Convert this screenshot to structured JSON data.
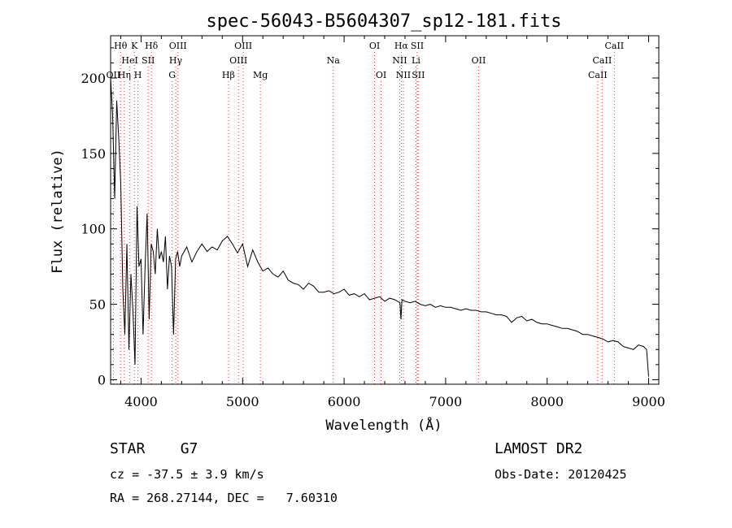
{
  "chart_data": {
    "type": "line",
    "title": "spec-56043-B5604307_sp12-181.fits",
    "xlabel": "Wavelength (Å)",
    "ylabel": "Flux (relative)",
    "xlim": [
      3700,
      9100
    ],
    "ylim": [
      -3,
      228
    ],
    "x_ticks": [
      4000,
      5000,
      6000,
      7000,
      8000,
      9000
    ],
    "y_ticks": [
      0,
      50,
      100,
      150,
      200
    ],
    "series": [
      {
        "x": [
          3700,
          3720,
          3740,
          3760,
          3780,
          3800,
          3820,
          3840,
          3860,
          3880,
          3900,
          3920,
          3940,
          3960,
          3980,
          4000,
          4020,
          4040,
          4060,
          4080,
          4100,
          4120,
          4140,
          4160,
          4180,
          4200,
          4220,
          4240,
          4260,
          4280,
          4300,
          4320,
          4340,
          4360,
          4380,
          4400,
          4450,
          4500,
          4550,
          4600,
          4650,
          4700,
          4750,
          4800,
          4850,
          4900,
          4950,
          5000,
          5050,
          5100,
          5150,
          5200,
          5250,
          5300,
          5350,
          5400,
          5450,
          5500,
          5550,
          5600,
          5650,
          5700,
          5750,
          5800,
          5850,
          5900,
          5950,
          6000,
          6050,
          6100,
          6150,
          6200,
          6250,
          6300,
          6350,
          6400,
          6450,
          6500,
          6550,
          6560,
          6570,
          6600,
          6650,
          6700,
          6750,
          6800,
          6850,
          6900,
          6950,
          7000,
          7050,
          7100,
          7150,
          7200,
          7250,
          7300,
          7350,
          7400,
          7450,
          7500,
          7550,
          7600,
          7650,
          7700,
          7750,
          7800,
          7850,
          7900,
          7950,
          8000,
          8050,
          8100,
          8150,
          8200,
          8250,
          8300,
          8350,
          8400,
          8450,
          8500,
          8550,
          8600,
          8650,
          8700,
          8750,
          8800,
          8850,
          8900,
          8950,
          8980,
          9000
        ],
        "y": [
          200,
          175,
          120,
          185,
          160,
          130,
          60,
          30,
          90,
          20,
          70,
          45,
          10,
          115,
          75,
          80,
          30,
          75,
          110,
          40,
          90,
          85,
          70,
          100,
          80,
          85,
          78,
          95,
          60,
          82,
          75,
          30,
          80,
          85,
          75,
          82,
          88,
          78,
          85,
          90,
          85,
          88,
          86,
          92,
          95,
          90,
          84,
          90,
          75,
          86,
          78,
          72,
          74,
          70,
          68,
          72,
          66,
          64,
          63,
          60,
          64,
          62,
          58,
          58,
          59,
          57,
          58,
          60,
          56,
          57,
          55,
          57,
          53,
          54,
          55,
          52,
          54,
          53,
          51,
          40,
          53,
          52,
          51,
          52,
          50,
          49,
          50,
          48,
          49,
          48,
          48,
          47,
          46,
          47,
          46,
          46,
          45,
          45,
          44,
          43,
          43,
          42,
          38,
          41,
          42,
          39,
          40,
          38,
          37,
          37,
          36,
          35,
          34,
          34,
          33,
          32,
          30,
          30,
          29,
          28,
          27,
          25,
          26,
          25,
          22,
          21,
          20,
          23,
          22,
          20,
          2
        ]
      }
    ],
    "emission_lines": [
      {
        "label": "Hθ",
        "wl": 3798,
        "row": 0
      },
      {
        "label": "K",
        "wl": 3934,
        "row": 0
      },
      {
        "label": "Hδ",
        "wl": 4102,
        "row": 0
      },
      {
        "label": "OIII",
        "wl": 4363,
        "row": 0
      },
      {
        "label": "OIII",
        "wl": 5007,
        "row": 0
      },
      {
        "label": "OI",
        "wl": 6300,
        "row": 0
      },
      {
        "label": "Hα",
        "wl": 6563,
        "row": 0
      },
      {
        "label": "SII",
        "wl": 6720,
        "row": 0
      },
      {
        "label": "CaII",
        "wl": 8662,
        "row": 0
      },
      {
        "label": "HeI",
        "wl": 3889,
        "row": 1
      },
      {
        "label": "SII",
        "wl": 4070,
        "row": 1
      },
      {
        "label": "Hγ",
        "wl": 4341,
        "row": 1
      },
      {
        "label": "OIII",
        "wl": 4959,
        "row": 1
      },
      {
        "label": "Na",
        "wl": 5893,
        "row": 1
      },
      {
        "label": "NII",
        "wl": 6548,
        "row": 1
      },
      {
        "label": "Li",
        "wl": 6708,
        "row": 1
      },
      {
        "label": "OII",
        "wl": 7325,
        "row": 1
      },
      {
        "label": "CaII",
        "wl": 8542,
        "row": 1
      },
      {
        "label": "OII",
        "wl": 3727,
        "row": 2
      },
      {
        "label": "Hη",
        "wl": 3835,
        "row": 2
      },
      {
        "label": "H",
        "wl": 3969,
        "row": 2
      },
      {
        "label": "G",
        "wl": 4306,
        "row": 2
      },
      {
        "label": "Hβ",
        "wl": 4861,
        "row": 2
      },
      {
        "label": "Mg",
        "wl": 5175,
        "row": 2
      },
      {
        "label": "OI",
        "wl": 6364,
        "row": 2
      },
      {
        "label": "NII",
        "wl": 6584,
        "row": 2
      },
      {
        "label": "SII",
        "wl": 6731,
        "row": 2
      },
      {
        "label": "CaII",
        "wl": 8498,
        "row": 2
      }
    ],
    "grid": false,
    "legend": "none"
  },
  "info": {
    "class_text": "STAR    G7",
    "survey": "LAMOST DR2",
    "cz": "cz = -37.5 ± 3.9 km/s",
    "obs_date": "Obs-Date: 20120425",
    "coords": "RA = 268.27144, DEC =   7.60310"
  }
}
